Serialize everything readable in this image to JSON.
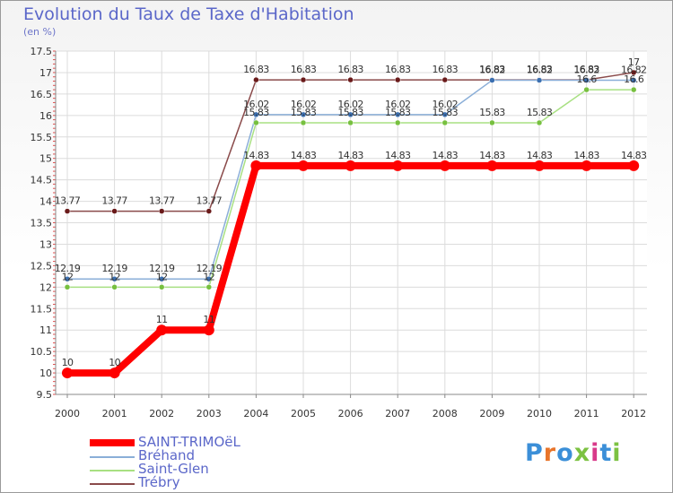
{
  "title": "Evolution du Taux de Taxe d'Habitation",
  "subtitle": "(en %)",
  "logo": {
    "text": "Proxiti",
    "colors": [
      "#3b8fd8",
      "#e8742a",
      "#3b8fd8",
      "#7cc242",
      "#d83a8a",
      "#3b8fd8",
      "#7cc242"
    ]
  },
  "chart_data": {
    "type": "line",
    "categories": [
      "2000",
      "2001",
      "2002",
      "2003",
      "2004",
      "2005",
      "2006",
      "2007",
      "2008",
      "2009",
      "2010",
      "2011",
      "2012"
    ],
    "ylim": [
      9.5,
      17.5
    ],
    "yticks": [
      "9.5",
      "10",
      "10.5",
      "11",
      "11.5",
      "12",
      "12.5",
      "13",
      "13.5",
      "14",
      "14.5",
      "15",
      "15.5",
      "16",
      "16.5",
      "17",
      "17.5"
    ],
    "legend_position": "bottom-left",
    "series": [
      {
        "name": "SAINT-TRIMOëL",
        "color": "#ff0000",
        "marker": "#ff0000",
        "values": [
          10,
          10,
          11,
          11,
          14.83,
          14.83,
          14.83,
          14.83,
          14.83,
          14.83,
          14.83,
          14.83,
          14.83
        ],
        "labels": [
          "10",
          "10",
          "11",
          "11",
          "14.83",
          "14.83",
          "14.83",
          "14.83",
          "14.83",
          "14.83",
          "14.83",
          "14.83",
          "14.83"
        ]
      },
      {
        "name": "Bréhand",
        "color": "#8aaed8",
        "marker": "#3b6fb0",
        "values": [
          12.19,
          12.19,
          12.19,
          12.19,
          16.02,
          16.02,
          16.02,
          16.02,
          16.02,
          16.82,
          16.82,
          16.82,
          16.82
        ],
        "labels": [
          "12.19",
          "12.19",
          "12.19",
          "12.19",
          "16.02",
          "16.02",
          "16.02",
          "16.02",
          "16.02",
          "16.82",
          "16.82",
          "16.82",
          "16.82"
        ]
      },
      {
        "name": "Saint-Glen",
        "color": "#a8e082",
        "marker": "#77c03f",
        "values": [
          12,
          12,
          12,
          12,
          15.83,
          15.83,
          15.83,
          15.83,
          15.83,
          15.83,
          15.83,
          16.6,
          16.6
        ],
        "labels": [
          "12",
          "12",
          "12",
          "12",
          "15.83",
          "15.83",
          "15.83",
          "15.83",
          "15.83",
          "15.83",
          "15.83",
          "16.6",
          "16.6"
        ]
      },
      {
        "name": "Trébry",
        "color": "#8a4a4a",
        "marker": "#6a1a1a",
        "values": [
          13.77,
          13.77,
          13.77,
          13.77,
          16.83,
          16.83,
          16.83,
          16.83,
          16.83,
          16.83,
          16.83,
          16.83,
          17
        ],
        "labels": [
          "13.77",
          "13.77",
          "13.77",
          "13.77",
          "16.83",
          "16.83",
          "16.83",
          "16.83",
          "16.83",
          "16.83",
          "16.83",
          "16.83",
          "17"
        ]
      }
    ]
  }
}
